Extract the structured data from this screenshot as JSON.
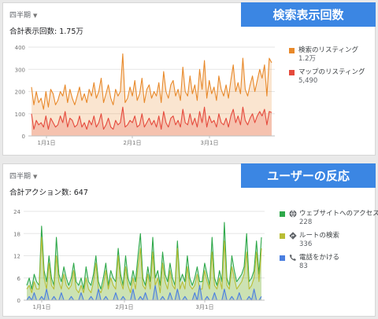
{
  "panel1": {
    "period_label": "四半期",
    "total_label": "合計表示回数: 1.75万",
    "banner": "検索表示回数",
    "legend": [
      {
        "label": "検索のリスティング",
        "value": "1.2万",
        "color": "#e8892a"
      },
      {
        "label": "マップのリスティング",
        "value": "5,490",
        "color": "#e54a3c"
      }
    ]
  },
  "panel2": {
    "period_label": "四半期",
    "total_label": "合計アクション数: 647",
    "banner": "ユーザーの反応",
    "legend": [
      {
        "label": "ウェブサイトへのアクセス",
        "value": "228",
        "color": "#2ea84a",
        "icon": "globe-icon"
      },
      {
        "label": "ルートの検索",
        "value": "336",
        "color": "#b9bd35",
        "icon": "directions-icon"
      },
      {
        "label": "電話をかける",
        "value": "83",
        "color": "#4a7fe0",
        "icon": "phone-icon"
      }
    ]
  },
  "chart_data": [
    {
      "type": "area",
      "ylim": [
        0,
        400
      ],
      "yticks": [
        "0",
        "100",
        "200",
        "300",
        "400"
      ],
      "xticks": [
        "1月1日",
        "2月1日",
        "3月1日"
      ],
      "series": [
        {
          "name": "検索のリスティング",
          "color": "#e8892a",
          "values": [
            220,
            140,
            200,
            150,
            170,
            120,
            200,
            130,
            210,
            190,
            140,
            160,
            200,
            180,
            230,
            150,
            210,
            170,
            140,
            180,
            220,
            160,
            190,
            150,
            210,
            180,
            240,
            170,
            200,
            260,
            150,
            190,
            230,
            170,
            140,
            210,
            180,
            200,
            370,
            150,
            170,
            220,
            180,
            250,
            160,
            190,
            260,
            150,
            210,
            230,
            170,
            200,
            180,
            240,
            150,
            290,
            200,
            170,
            230,
            250,
            180,
            210,
            160,
            310,
            200,
            180,
            270,
            190,
            230,
            160,
            300,
            210,
            340,
            170,
            250,
            190,
            220,
            160,
            270,
            210,
            180,
            230,
            170,
            250,
            320,
            200,
            240,
            190,
            350,
            210,
            180,
            230,
            270,
            200,
            250,
            300,
            260,
            320,
            180,
            350,
            330
          ]
        },
        {
          "name": "マップのリスティング",
          "color": "#e54a3c",
          "values": [
            100,
            30,
            70,
            50,
            60,
            40,
            90,
            30,
            80,
            60,
            40,
            50,
            90,
            60,
            110,
            40,
            80,
            70,
            40,
            50,
            90,
            40,
            60,
            30,
            70,
            50,
            90,
            40,
            60,
            100,
            30,
            50,
            80,
            40,
            30,
            70,
            50,
            60,
            130,
            40,
            50,
            70,
            60,
            90,
            40,
            50,
            100,
            40,
            60,
            80,
            50,
            70,
            40,
            90,
            30,
            110,
            60,
            40,
            80,
            90,
            50,
            70,
            40,
            120,
            60,
            50,
            100,
            50,
            80,
            40,
            110,
            60,
            130,
            40,
            90,
            60,
            70,
            40,
            100,
            60,
            50,
            80,
            40,
            90,
            120,
            60,
            90,
            50,
            130,
            70,
            50,
            80,
            100,
            60,
            90,
            110,
            90,
            120,
            50,
            110,
            105
          ]
        }
      ]
    },
    {
      "type": "area",
      "ylim": [
        0,
        24
      ],
      "yticks": [
        "0",
        "6",
        "12",
        "18",
        "24"
      ],
      "xticks": [
        "1月1日",
        "2月1日",
        "3月1日"
      ],
      "series": [
        {
          "name": "ウェブサイトへのアクセス",
          "color": "#2ea84a",
          "values": [
            4,
            6,
            3,
            7,
            5,
            4,
            20,
            8,
            5,
            12,
            6,
            4,
            17,
            7,
            5,
            9,
            6,
            4,
            6,
            10,
            5,
            4,
            6,
            3,
            9,
            5,
            4,
            7,
            12,
            5,
            3,
            6,
            10,
            4,
            8,
            6,
            5,
            14,
            7,
            4,
            12,
            6,
            4,
            8,
            5,
            12,
            18,
            6,
            4,
            9,
            5,
            17,
            6,
            8,
            4,
            13,
            7,
            5,
            10,
            6,
            4,
            16,
            5,
            7,
            5,
            12,
            6,
            4,
            6,
            9,
            5,
            5,
            10,
            7,
            4,
            17,
            6,
            4,
            8,
            5,
            21,
            6,
            4,
            12,
            8,
            5,
            6,
            7,
            9,
            18,
            5,
            6,
            8,
            16,
            7,
            17
          ]
        },
        {
          "name": "ルートの検索",
          "color": "#b9bd35",
          "values": [
            3,
            4,
            2,
            5,
            3,
            3,
            17,
            6,
            3,
            10,
            4,
            3,
            12,
            5,
            3,
            7,
            4,
            3,
            4,
            8,
            3,
            2,
            4,
            2,
            6,
            3,
            2,
            5,
            10,
            3,
            2,
            4,
            8,
            3,
            6,
            4,
            3,
            12,
            5,
            3,
            9,
            4,
            2,
            6,
            3,
            9,
            14,
            4,
            3,
            7,
            3,
            13,
            4,
            6,
            2,
            10,
            5,
            3,
            8,
            4,
            3,
            14,
            3,
            5,
            3,
            9,
            4,
            3,
            4,
            7,
            3,
            3,
            8,
            5,
            3,
            13,
            4,
            3,
            6,
            3,
            16,
            4,
            3,
            9,
            6,
            3,
            4,
            5,
            7,
            13,
            3,
            4,
            6,
            13,
            5,
            14
          ]
        },
        {
          "name": "電話をかける",
          "color": "#4a7fe0",
          "values": [
            0,
            1,
            0,
            2,
            0,
            0,
            1,
            0,
            3,
            0,
            0,
            1,
            0,
            0,
            2,
            0,
            0,
            0,
            1,
            0,
            0,
            0,
            2,
            0,
            0,
            0,
            1,
            0,
            0,
            3,
            0,
            0,
            1,
            0,
            0,
            0,
            2,
            0,
            0,
            1,
            0,
            0,
            0,
            3,
            0,
            0,
            1,
            0,
            2,
            0,
            0,
            0,
            4,
            0,
            0,
            1,
            0,
            0,
            2,
            0,
            0,
            3,
            0,
            0,
            1,
            0,
            0,
            0,
            2,
            0,
            4,
            0,
            0,
            1,
            0,
            0,
            2,
            0,
            0,
            0,
            3,
            0,
            0,
            1,
            0,
            0,
            2,
            0,
            0,
            0,
            1,
            0,
            3,
            0,
            0,
            1
          ]
        }
      ]
    }
  ]
}
